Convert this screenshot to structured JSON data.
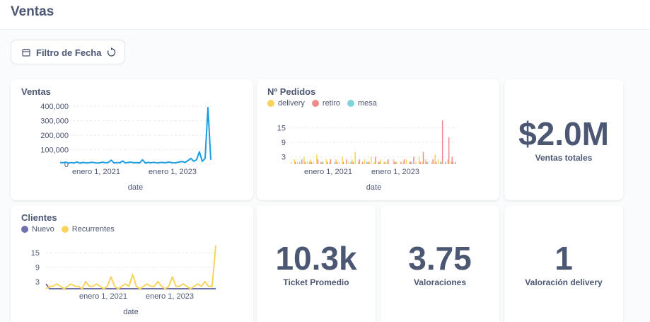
{
  "header": {
    "title": "Ventas"
  },
  "filter": {
    "label": "Filtro de Fecha"
  },
  "colors": {
    "ventas": "#1a9de0",
    "delivery": "#f9d45c",
    "retiro": "#ef8c8c",
    "mesa": "#7ed4d6",
    "nuevo": "#7172ad",
    "recurrentes": "#f9d45c"
  },
  "cards": {
    "ventas_totales": {
      "value": "$2.0M",
      "label": "Ventas totales"
    },
    "ticket": {
      "value": "10.3k",
      "label": "Ticket Promedio"
    },
    "valoraciones": {
      "value": "3.75",
      "label": "Valoraciones"
    },
    "valoracion_delivery": {
      "value": "1",
      "label": "Valoración delivery"
    }
  },
  "chart_data": [
    {
      "type": "line",
      "title": "Ventas",
      "xlabel": "date",
      "ylabel": "",
      "x_ticks": [
        "enero 1, 2021",
        "enero 1, 2023"
      ],
      "y_ticks": [
        "400,000",
        "300,000",
        "200,000",
        "100,000",
        "0"
      ],
      "ylim": [
        0,
        400000
      ],
      "grid": true,
      "series": [
        {
          "name": "Ventas",
          "color": "#1a9de0",
          "values": [
            12000,
            10000,
            14000,
            8000,
            11000,
            9000,
            15000,
            7000,
            12000,
            10000,
            9000,
            13000,
            11000,
            8000,
            10000,
            14000,
            9000,
            12000,
            28000,
            8000,
            11000,
            10000,
            22000,
            9000,
            12000,
            14000,
            10000,
            11000,
            9000,
            30000,
            8000,
            12000,
            10000,
            13000,
            9000,
            11000,
            12000,
            10000,
            14000,
            12000,
            9000,
            11000,
            15000,
            18000,
            12000,
            25000,
            40000,
            20000,
            30000,
            85000,
            20000,
            40000,
            390000,
            30000
          ]
        }
      ]
    },
    {
      "type": "bar",
      "title": "Nº Pedidos",
      "xlabel": "date",
      "ylabel": "",
      "x_ticks": [
        "enero 1, 2021",
        "enero 1, 2023"
      ],
      "y_ticks": [
        "15",
        "9",
        "3"
      ],
      "ylim": [
        0,
        18
      ],
      "grid": true,
      "series": [
        {
          "name": "delivery",
          "color": "#f9d45c",
          "values": [
            1,
            2,
            1,
            0,
            3,
            1,
            2,
            1,
            4,
            0,
            1,
            2,
            1,
            0,
            2,
            1,
            3,
            0,
            1,
            2,
            5,
            1,
            0,
            2,
            1,
            3,
            1,
            0,
            2,
            1,
            1,
            0,
            2,
            1,
            0,
            1,
            2,
            1,
            0,
            1,
            3,
            1,
            2,
            0,
            1,
            4,
            2,
            1,
            0,
            2,
            1,
            0
          ]
        },
        {
          "name": "retiro",
          "color": "#ef8c8c",
          "values": [
            0,
            1,
            0,
            2,
            1,
            0,
            1,
            0,
            2,
            1,
            0,
            1,
            2,
            0,
            1,
            0,
            1,
            2,
            0,
            1,
            0,
            2,
            1,
            0,
            1,
            0,
            3,
            1,
            0,
            1,
            2,
            0,
            1,
            0,
            1,
            2,
            0,
            1,
            3,
            0,
            1,
            5,
            1,
            0,
            2,
            1,
            0,
            18,
            1,
            11,
            3,
            1
          ]
        },
        {
          "name": "mesa",
          "color": "#7ed4d6",
          "values": [
            0,
            0,
            1,
            0,
            0,
            1,
            0,
            0,
            0,
            1,
            0,
            0,
            0,
            1,
            0,
            0,
            0,
            0,
            1,
            0,
            0,
            0,
            0,
            1,
            0,
            0,
            0,
            1,
            0,
            0,
            0,
            0,
            1,
            0,
            0,
            0,
            0,
            1,
            0,
            0,
            0,
            0,
            1,
            0,
            0,
            0,
            1,
            0,
            0,
            0,
            1,
            0
          ]
        }
      ]
    },
    {
      "type": "line",
      "title": "Clientes",
      "xlabel": "date",
      "ylabel": "",
      "x_ticks": [
        "enero 1, 2021",
        "enero 1, 2023"
      ],
      "y_ticks": [
        "15",
        "9",
        "3"
      ],
      "ylim": [
        0,
        18
      ],
      "grid": true,
      "series": [
        {
          "name": "Nuevo",
          "color": "#7172ad",
          "values": [
            2,
            0,
            0,
            0,
            0,
            0,
            0,
            0,
            0,
            0,
            0,
            0,
            0,
            0,
            0,
            0,
            0,
            0,
            0,
            0,
            0,
            0,
            0,
            0,
            0,
            0,
            0,
            0,
            0,
            0,
            0,
            0,
            0,
            0,
            0,
            0,
            0,
            0,
            0,
            0,
            0,
            0,
            0,
            0,
            0,
            0,
            0,
            0
          ]
        },
        {
          "name": "Recurrentes",
          "color": "#f9d45c",
          "values": [
            0,
            1,
            1,
            2,
            1,
            0,
            1,
            2,
            1,
            1,
            0,
            3,
            1,
            1,
            2,
            1,
            0,
            1,
            5,
            1,
            0,
            1,
            2,
            1,
            6,
            1,
            0,
            1,
            2,
            1,
            1,
            3,
            1,
            0,
            1,
            5,
            1,
            1,
            2,
            1,
            0,
            1,
            2,
            1,
            3,
            1,
            1,
            18
          ]
        }
      ]
    }
  ]
}
